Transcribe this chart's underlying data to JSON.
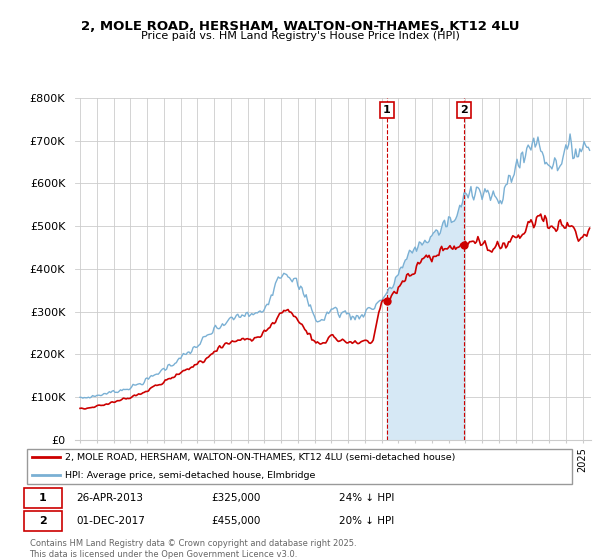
{
  "title": "2, MOLE ROAD, HERSHAM, WALTON-ON-THAMES, KT12 4LU",
  "subtitle": "Price paid vs. HM Land Registry's House Price Index (HPI)",
  "ylim": [
    0,
    800000
  ],
  "yticks": [
    0,
    100000,
    200000,
    300000,
    400000,
    500000,
    600000,
    700000,
    800000
  ],
  "ytick_labels": [
    "£0",
    "£100K",
    "£200K",
    "£300K",
    "£400K",
    "£500K",
    "£600K",
    "£700K",
    "£800K"
  ],
  "sale1_x": 2013.32,
  "sale1_y": 325000,
  "sale2_x": 2017.92,
  "sale2_y": 455000,
  "red_color": "#cc0000",
  "blue_color": "#7ab0d4",
  "blue_fill_color": "#d6e8f5",
  "legend_label_red": "2, MOLE ROAD, HERSHAM, WALTON-ON-THAMES, KT12 4LU (semi-detached house)",
  "legend_label_blue": "HPI: Average price, semi-detached house, Elmbridge",
  "footer3": "Contains HM Land Registry data © Crown copyright and database right 2025.",
  "footer4": "This data is licensed under the Open Government Licence v3.0.",
  "xlim_left": 1994.7,
  "xlim_right": 2025.5
}
